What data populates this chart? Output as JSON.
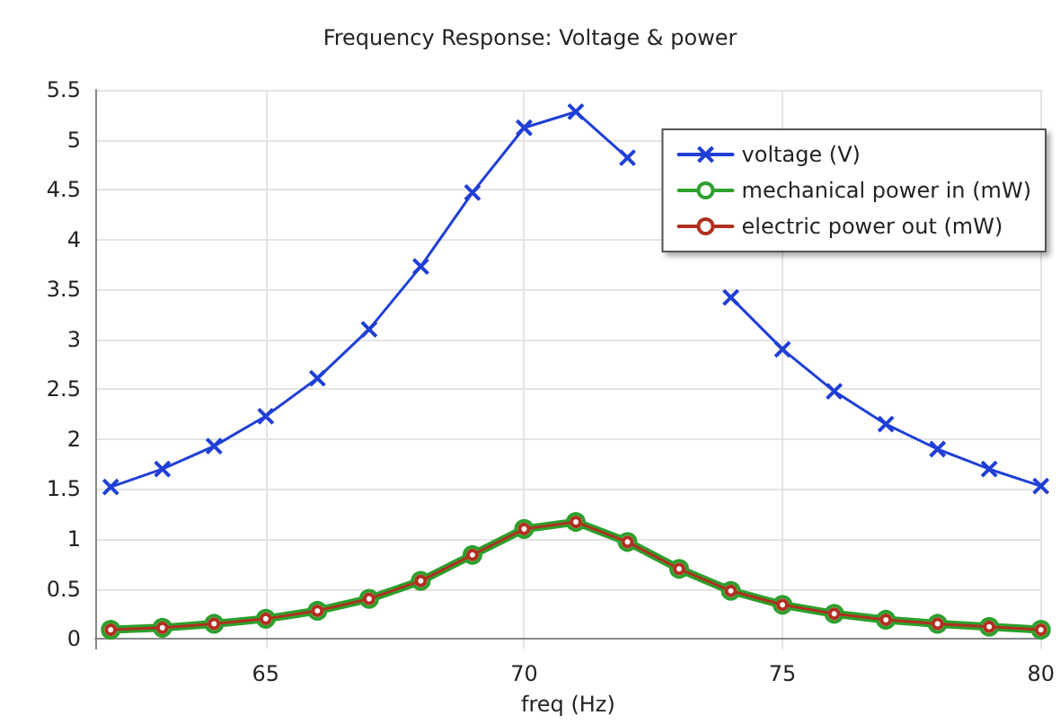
{
  "chart_data": {
    "type": "line",
    "title": "Frequency Response: Voltage & power",
    "xlabel": "freq (Hz)",
    "x": [
      62,
      63,
      64,
      65,
      66,
      67,
      68,
      69,
      70,
      71,
      72,
      73,
      74,
      75,
      76,
      77,
      78,
      79,
      80
    ],
    "series": [
      {
        "name": "voltage (V)",
        "color": "#1f3fd6",
        "marker": "cross",
        "values": [
          1.52,
          1.7,
          1.93,
          2.23,
          2.61,
          3.1,
          3.73,
          4.47,
          5.12,
          5.28,
          4.82,
          null,
          3.42,
          2.9,
          2.48,
          2.15,
          1.9,
          1.7,
          1.53
        ]
      },
      {
        "name": "mechanical power in (mW)",
        "color": "#2ca02c",
        "marker": "circle",
        "values": [
          0.09,
          0.11,
          0.15,
          0.2,
          0.28,
          0.4,
          0.58,
          0.84,
          1.1,
          1.17,
          0.97,
          0.7,
          0.48,
          0.34,
          0.25,
          0.19,
          0.15,
          0.12,
          0.09
        ]
      },
      {
        "name": "electric power out (mW)",
        "color": "#b03020",
        "marker": "circle",
        "values": [
          0.09,
          0.11,
          0.15,
          0.2,
          0.28,
          0.4,
          0.58,
          0.84,
          1.1,
          1.17,
          0.97,
          0.7,
          0.48,
          0.34,
          0.25,
          0.19,
          0.15,
          0.12,
          0.09
        ]
      }
    ],
    "xlim": [
      61.7,
      80
    ],
    "xticks": [
      65,
      70,
      75,
      80
    ],
    "ylim": [
      -0.1,
      5.5
    ],
    "yticks": [
      0,
      0.5,
      1,
      1.5,
      2,
      2.5,
      3,
      3.5,
      4,
      4.5,
      5,
      5.5
    ],
    "grid": true,
    "legend": "top right",
    "line_style": "solid"
  }
}
